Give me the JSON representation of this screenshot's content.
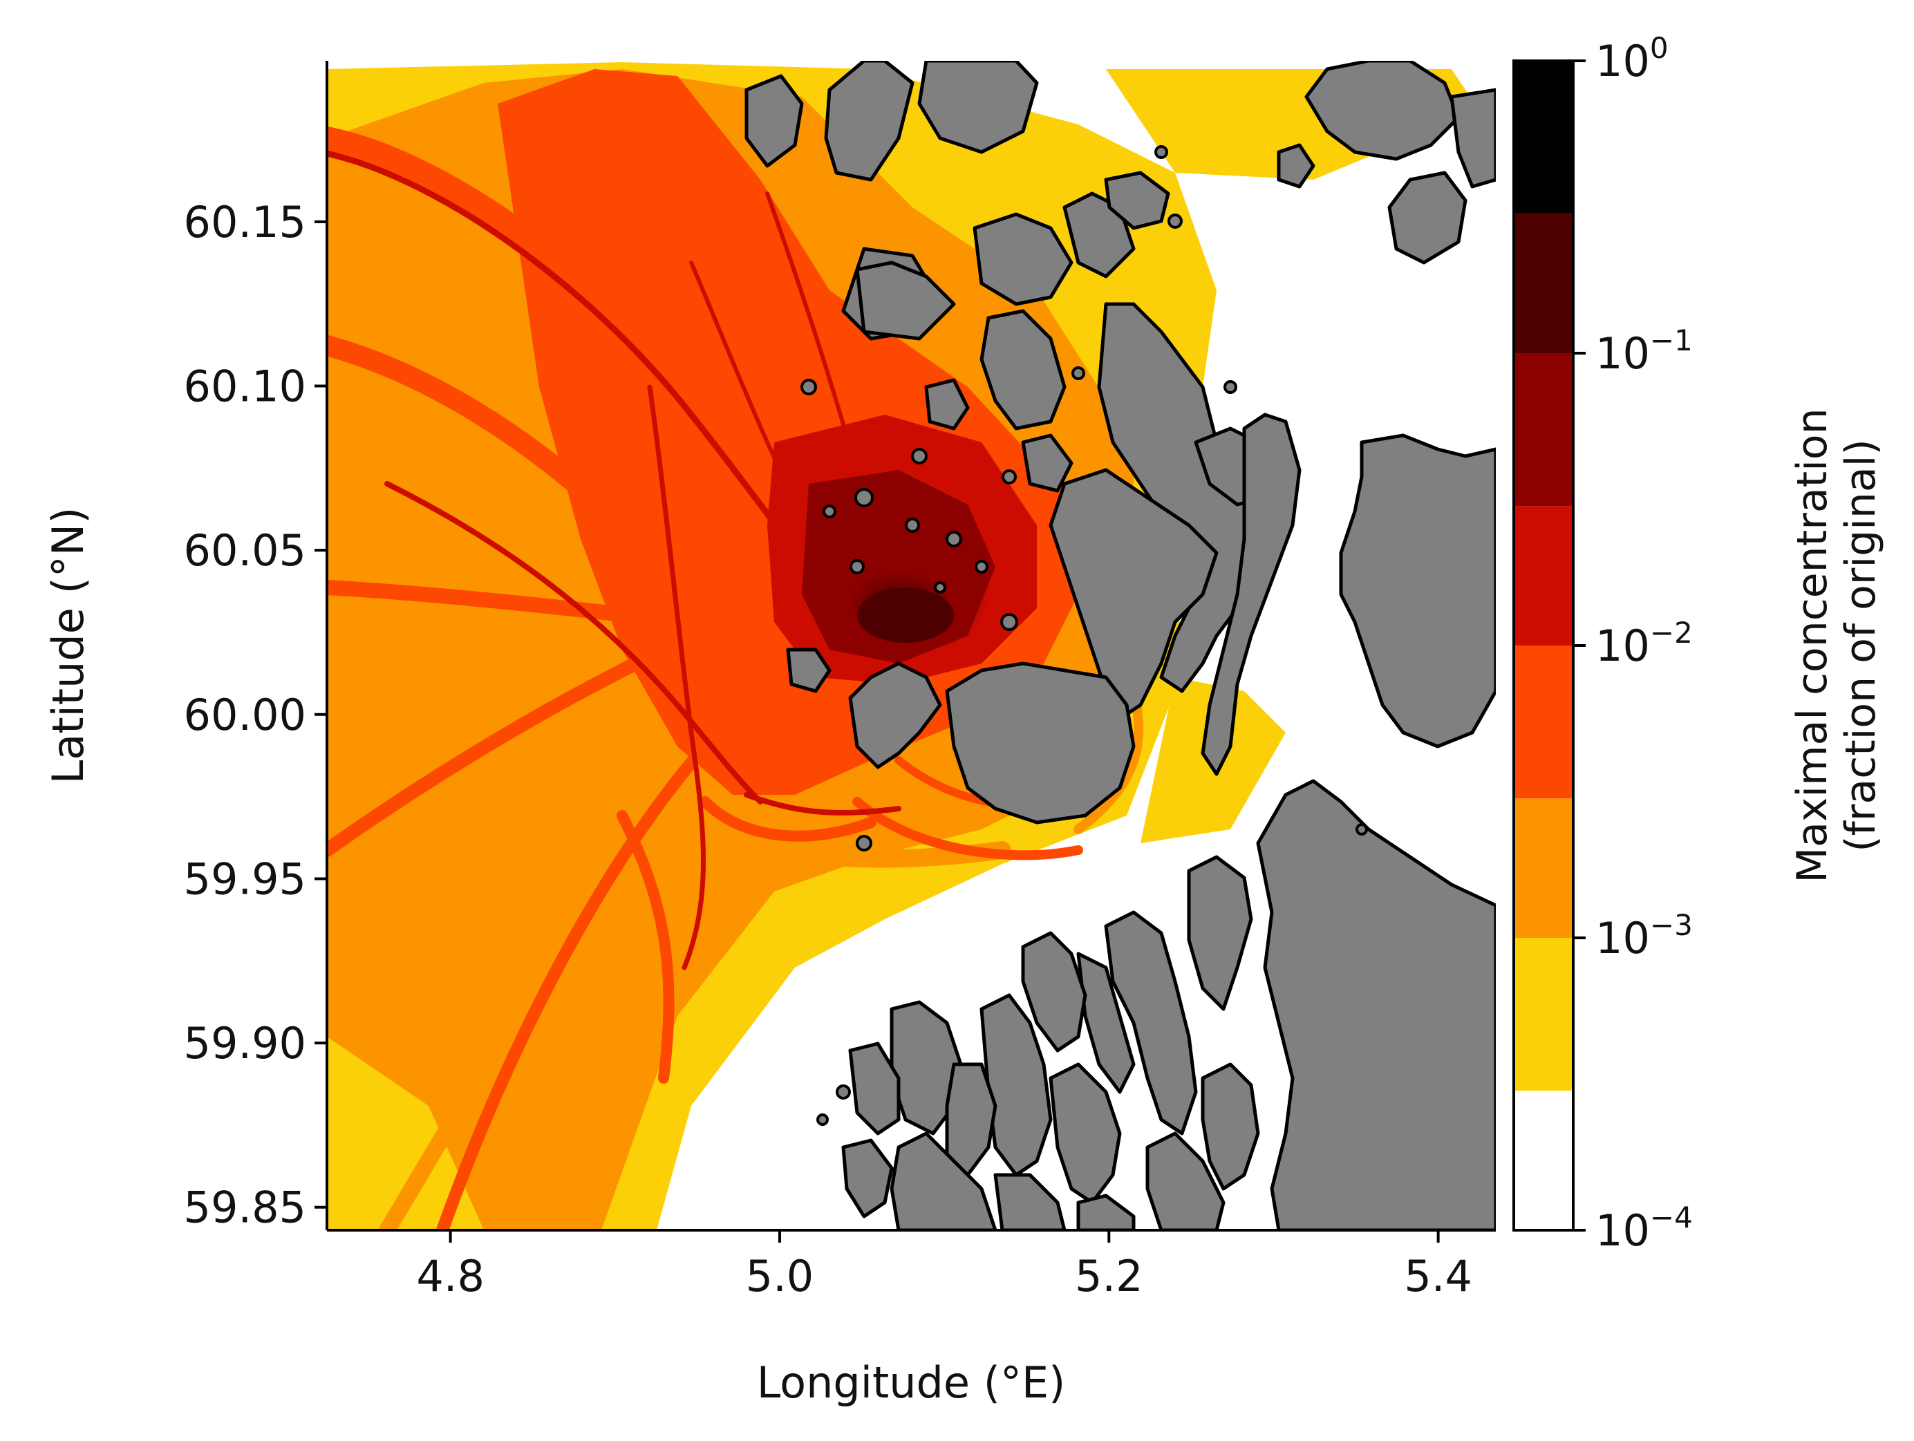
{
  "chart_data": {
    "type": "heatmap",
    "subtype": "map-concentration",
    "xlabel": "Longitude (°E)",
    "ylabel": "Latitude (°N)",
    "xlim": [
      4.725,
      5.435
    ],
    "ylim": [
      59.843,
      60.199
    ],
    "xticks": [
      {
        "value": 4.8,
        "label": "4.8"
      },
      {
        "value": 5.0,
        "label": "5.0"
      },
      {
        "value": 5.2,
        "label": "5.2"
      },
      {
        "value": 5.4,
        "label": "5.4"
      }
    ],
    "yticks": [
      {
        "value": 59.85,
        "label": "59.85"
      },
      {
        "value": 59.9,
        "label": "59.90"
      },
      {
        "value": 59.95,
        "label": "59.95"
      },
      {
        "value": 60.0,
        "label": "60.00"
      },
      {
        "value": 60.05,
        "label": "60.05"
      },
      {
        "value": 60.1,
        "label": "60.10"
      },
      {
        "value": 60.15,
        "label": "60.15"
      }
    ],
    "land_color": "#808080",
    "coastline_color": "#000000",
    "colorbar": {
      "label_line1": "Maximal concentration",
      "label_line2": "(fraction of original)",
      "scale": "log",
      "range": [
        0.0001,
        1
      ],
      "bins": [
        {
          "from": 0.0001,
          "to": 0.0003,
          "color": "#ffffff"
        },
        {
          "from": 0.0003,
          "to": 0.001,
          "color": "#fcd008"
        },
        {
          "from": 0.001,
          "to": 0.003,
          "color": "#fc9400"
        },
        {
          "from": 0.003,
          "to": 0.01,
          "color": "#fc4800"
        },
        {
          "from": 0.01,
          "to": 0.03,
          "color": "#cc0c00"
        },
        {
          "from": 0.03,
          "to": 0.1,
          "color": "#8c0000"
        },
        {
          "from": 0.1,
          "to": 0.3,
          "color": "#4e0000"
        },
        {
          "from": 0.3,
          "to": 1,
          "color": "#000000"
        }
      ],
      "ticks": [
        {
          "value": 0.0001,
          "base": "10",
          "exp": "−4"
        },
        {
          "value": 0.001,
          "base": "10",
          "exp": "−3"
        },
        {
          "value": 0.01,
          "base": "10",
          "exp": "−2"
        },
        {
          "value": 0.1,
          "base": "10",
          "exp": "−1"
        },
        {
          "value": 1,
          "base": "10",
          "exp": "0"
        }
      ]
    },
    "source_point": {
      "lon": 5.07,
      "lat": 60.03
    }
  }
}
